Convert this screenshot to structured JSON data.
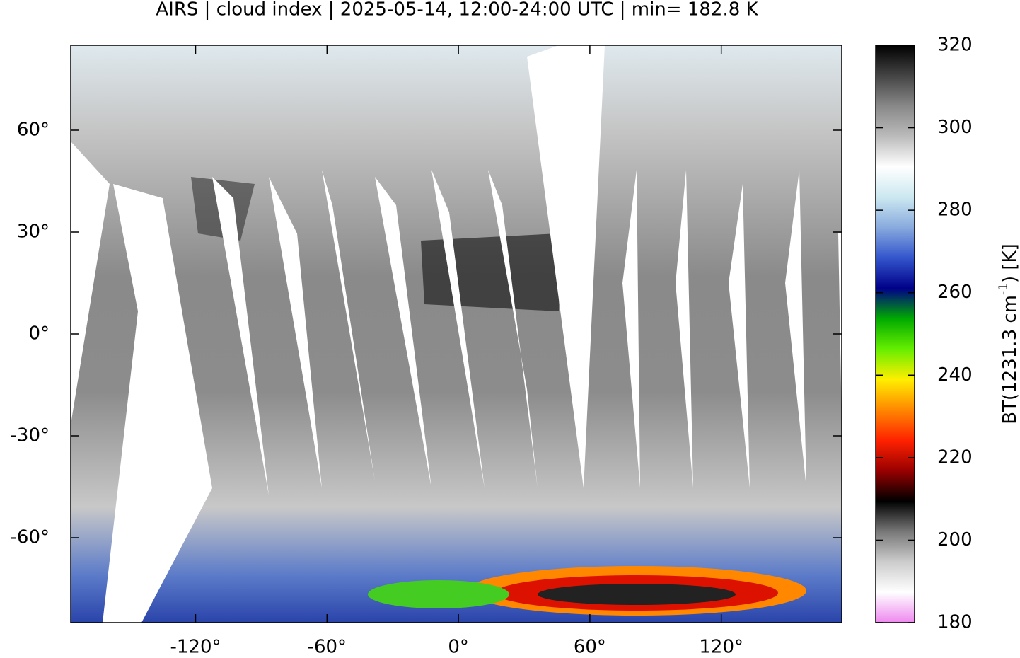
{
  "chart_data": {
    "type": "map",
    "title": "AIRS | cloud index | 2025-05-14, 12:00-24:00 UTC | min= 182.8 K",
    "xlim": [
      -177,
      175
    ],
    "ylim": [
      -85,
      85
    ],
    "xticks": [
      {
        "value": -120,
        "label": "-120°"
      },
      {
        "value": -60,
        "label": "-60°"
      },
      {
        "value": 0,
        "label": "0°"
      },
      {
        "value": 60,
        "label": "60°"
      },
      {
        "value": 120,
        "label": "120°"
      }
    ],
    "yticks": [
      {
        "value": 60,
        "label": "60°"
      },
      {
        "value": 30,
        "label": "30°"
      },
      {
        "value": 0,
        "label": "0°"
      },
      {
        "value": -30,
        "label": "-30°"
      },
      {
        "value": -60,
        "label": "-60°"
      }
    ],
    "colorbar": {
      "lim": [
        180,
        320
      ],
      "ticks": [
        180,
        200,
        220,
        240,
        260,
        280,
        300,
        320
      ],
      "label": [
        "BT(1231.3 cm",
        "-1",
        ") [K]"
      ],
      "colors": [
        "#ee88ee",
        "#ffffff",
        "#cccccc",
        "#777777",
        "#000000",
        "#990000",
        "#ff2200",
        "#ff8800",
        "#ffee00",
        "#66ee00",
        "#00aa00",
        "#000088",
        "#3355cc",
        "#88aadd",
        "#cce8f0",
        "#ffffff",
        "#bbbbbb",
        "#888888",
        "#444444",
        "#000000"
      ]
    }
  }
}
